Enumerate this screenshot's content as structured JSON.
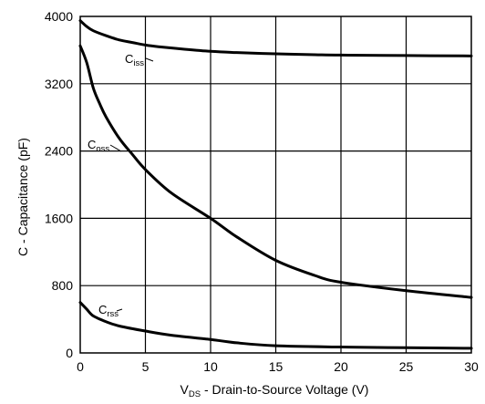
{
  "chart_data": {
    "type": "line",
    "xlabel": {
      "main": "V",
      "sub": "DS",
      "rest": " - Drain-to-Source Voltage (V)"
    },
    "ylabel": "C - Capacitance (pF)",
    "xlim": [
      0,
      30
    ],
    "ylim": [
      0,
      4000
    ],
    "x_ticks": [
      0,
      5,
      10,
      15,
      20,
      25,
      30
    ],
    "y_ticks": [
      0,
      800,
      1600,
      2400,
      3200,
      4000
    ],
    "grid": true,
    "legend": "none",
    "series": [
      {
        "name": "Ciss",
        "label_main": "C",
        "label_sub": "iss",
        "x": [
          0,
          0.5,
          1,
          2,
          3,
          4,
          5,
          6,
          8,
          10,
          12,
          15,
          18,
          20,
          25,
          30
        ],
        "y": [
          3950,
          3880,
          3830,
          3770,
          3720,
          3690,
          3660,
          3640,
          3610,
          3585,
          3570,
          3555,
          3545,
          3540,
          3535,
          3530
        ]
      },
      {
        "name": "Coss",
        "label_main": "C",
        "label_sub": "oss",
        "x": [
          0,
          0.5,
          1,
          1.5,
          2,
          3,
          4,
          5,
          7,
          10,
          12,
          15,
          18,
          20,
          25,
          30
        ],
        "y": [
          3650,
          3450,
          3150,
          2960,
          2800,
          2550,
          2360,
          2180,
          1900,
          1600,
          1380,
          1100,
          920,
          840,
          740,
          660
        ]
      },
      {
        "name": "Crss",
        "label_main": "C",
        "label_sub": "rss",
        "x": [
          0,
          0.5,
          1,
          2,
          3,
          5,
          7,
          10,
          12,
          15,
          20,
          25,
          30
        ],
        "y": [
          600,
          520,
          440,
          370,
          320,
          260,
          210,
          160,
          120,
          85,
          70,
          62,
          55
        ]
      }
    ]
  }
}
